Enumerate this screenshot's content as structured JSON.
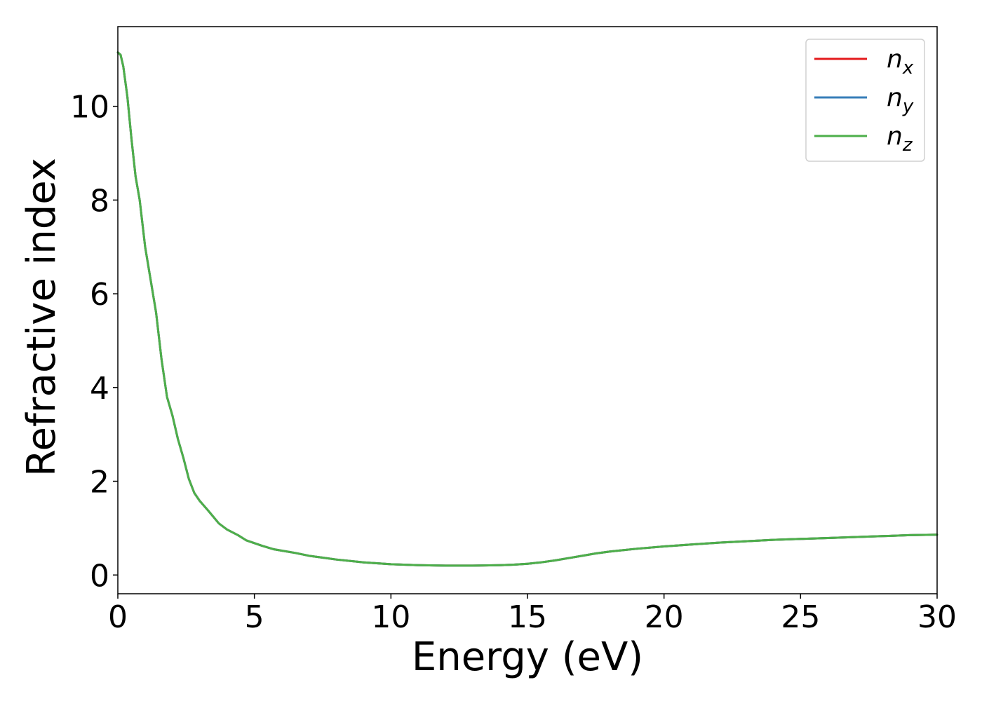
{
  "chart_data": {
    "type": "line",
    "title": "",
    "xlabel": "Energy (eV)",
    "ylabel": "Refractive index",
    "xlim": [
      0,
      30
    ],
    "ylim": [
      -0.4,
      11.7
    ],
    "xticks": [
      0,
      5,
      10,
      15,
      20,
      25,
      30
    ],
    "xtick_labels": [
      "0",
      "5",
      "10",
      "15",
      "20",
      "25",
      "30"
    ],
    "yticks": [
      0,
      2,
      4,
      6,
      8,
      10
    ],
    "ytick_labels": [
      "0",
      "2",
      "4",
      "6",
      "8",
      "10"
    ],
    "grid": false,
    "legend_position": "top-right",
    "x": [
      0,
      0.1,
      0.2,
      0.35,
      0.5,
      0.65,
      0.8,
      1.0,
      1.2,
      1.4,
      1.6,
      1.8,
      2.0,
      2.2,
      2.4,
      2.6,
      2.8,
      3.0,
      3.3,
      3.7,
      4.0,
      4.4,
      4.7,
      5.0,
      5.3,
      5.7,
      6.0,
      6.5,
      7.0,
      7.5,
      8.0,
      9.0,
      10.0,
      11.0,
      12.0,
      13.0,
      14.0,
      14.5,
      15.0,
      15.5,
      16.0,
      16.5,
      17.0,
      17.5,
      18.0,
      19.0,
      20.0,
      21.0,
      22.0,
      23.0,
      24.0,
      25.0,
      26.0,
      27.0,
      28.0,
      29.0,
      30.0
    ],
    "series": [
      {
        "name": "n_x",
        "label_base": "n",
        "label_sub": "x",
        "color": "#e41a1c",
        "values": [
          11.15,
          11.1,
          10.85,
          10.2,
          9.3,
          8.5,
          8.0,
          7.0,
          6.3,
          5.6,
          4.6,
          3.8,
          3.4,
          2.9,
          2.5,
          2.05,
          1.75,
          1.58,
          1.38,
          1.1,
          0.97,
          0.85,
          0.74,
          0.68,
          0.62,
          0.55,
          0.52,
          0.47,
          0.41,
          0.37,
          0.33,
          0.27,
          0.23,
          0.21,
          0.2,
          0.2,
          0.21,
          0.22,
          0.24,
          0.27,
          0.31,
          0.36,
          0.41,
          0.46,
          0.5,
          0.56,
          0.61,
          0.65,
          0.69,
          0.72,
          0.75,
          0.77,
          0.79,
          0.81,
          0.83,
          0.85,
          0.86
        ]
      },
      {
        "name": "n_y",
        "label_base": "n",
        "label_sub": "y",
        "color": "#377eb8",
        "values": [
          11.15,
          11.1,
          10.85,
          10.2,
          9.3,
          8.5,
          8.0,
          7.0,
          6.3,
          5.6,
          4.6,
          3.8,
          3.4,
          2.9,
          2.5,
          2.05,
          1.75,
          1.58,
          1.38,
          1.1,
          0.97,
          0.85,
          0.74,
          0.68,
          0.62,
          0.55,
          0.52,
          0.47,
          0.41,
          0.37,
          0.33,
          0.27,
          0.23,
          0.21,
          0.2,
          0.2,
          0.21,
          0.22,
          0.24,
          0.27,
          0.31,
          0.36,
          0.41,
          0.46,
          0.5,
          0.56,
          0.61,
          0.65,
          0.69,
          0.72,
          0.75,
          0.77,
          0.79,
          0.81,
          0.83,
          0.85,
          0.86
        ]
      },
      {
        "name": "n_z",
        "label_base": "n",
        "label_sub": "z",
        "color": "#4daf4a",
        "values": [
          11.15,
          11.1,
          10.85,
          10.2,
          9.3,
          8.5,
          8.0,
          7.0,
          6.3,
          5.6,
          4.6,
          3.8,
          3.4,
          2.9,
          2.5,
          2.05,
          1.75,
          1.58,
          1.38,
          1.1,
          0.97,
          0.85,
          0.74,
          0.68,
          0.62,
          0.55,
          0.52,
          0.47,
          0.41,
          0.37,
          0.33,
          0.27,
          0.23,
          0.21,
          0.2,
          0.2,
          0.21,
          0.22,
          0.24,
          0.27,
          0.31,
          0.36,
          0.41,
          0.46,
          0.5,
          0.56,
          0.61,
          0.65,
          0.69,
          0.72,
          0.75,
          0.77,
          0.79,
          0.81,
          0.83,
          0.85,
          0.86
        ]
      }
    ]
  }
}
